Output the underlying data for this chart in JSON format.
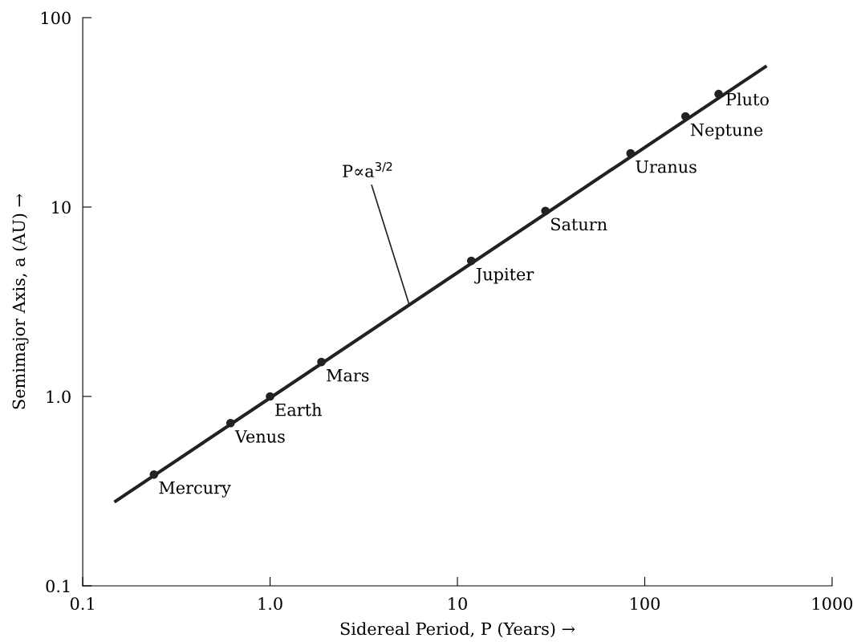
{
  "chart_data": {
    "type": "scatter",
    "xlabel": "Sidereal Period, P (Years) →",
    "ylabel": "Semimajor Axis, a (AU) →",
    "log": "xy",
    "grid": false,
    "marker": "circle",
    "xlim": [
      0.1,
      1000
    ],
    "ylim": [
      0.1,
      100
    ],
    "xticks": [
      0.1,
      {
        "value": 1,
        "label": "1.0"
      },
      10,
      100,
      1000
    ],
    "yticks": [
      0.1,
      {
        "value": 1,
        "label": "1.0"
      },
      10,
      100
    ],
    "series": [
      {
        "type": "line",
        "color": "#222222",
        "x": [
          0.15,
          440
        ],
        "values": [
          0.28,
          55
        ],
        "marker": "none"
      },
      {
        "color": "#222222",
        "x": [
          0.24,
          0.615,
          1,
          1.88,
          11.86,
          29.5,
          84,
          165,
          248
        ],
        "values": [
          0.387,
          0.723,
          1,
          1.52,
          5.2,
          9.54,
          19.2,
          30.1,
          39.5
        ]
      }
    ],
    "annotations": [
      {
        "text": "Mercury",
        "x": 0.24,
        "y": 0.387
      },
      {
        "text": "Venus",
        "x": 0.615,
        "y": 0.723
      },
      {
        "text": "Earth",
        "x": 1,
        "y": 1
      },
      {
        "text": "Mars",
        "x": 1.88,
        "y": 1.52
      },
      {
        "text": "Jupiter",
        "x": 11.86,
        "y": 5.2
      },
      {
        "text": "Saturn",
        "x": 29.5,
        "y": 9.54
      },
      {
        "text": "Uranus",
        "x": 84,
        "y": 19.2
      },
      {
        "text": "Neptune",
        "x": 165,
        "y": 30.1
      },
      {
        "text": "Pluto",
        "x": 248,
        "y": 39.5
      },
      {
        "text": "P∝a$^{3/2}$",
        "x": 5.5,
        "y": 3.1
      }
    ]
  }
}
